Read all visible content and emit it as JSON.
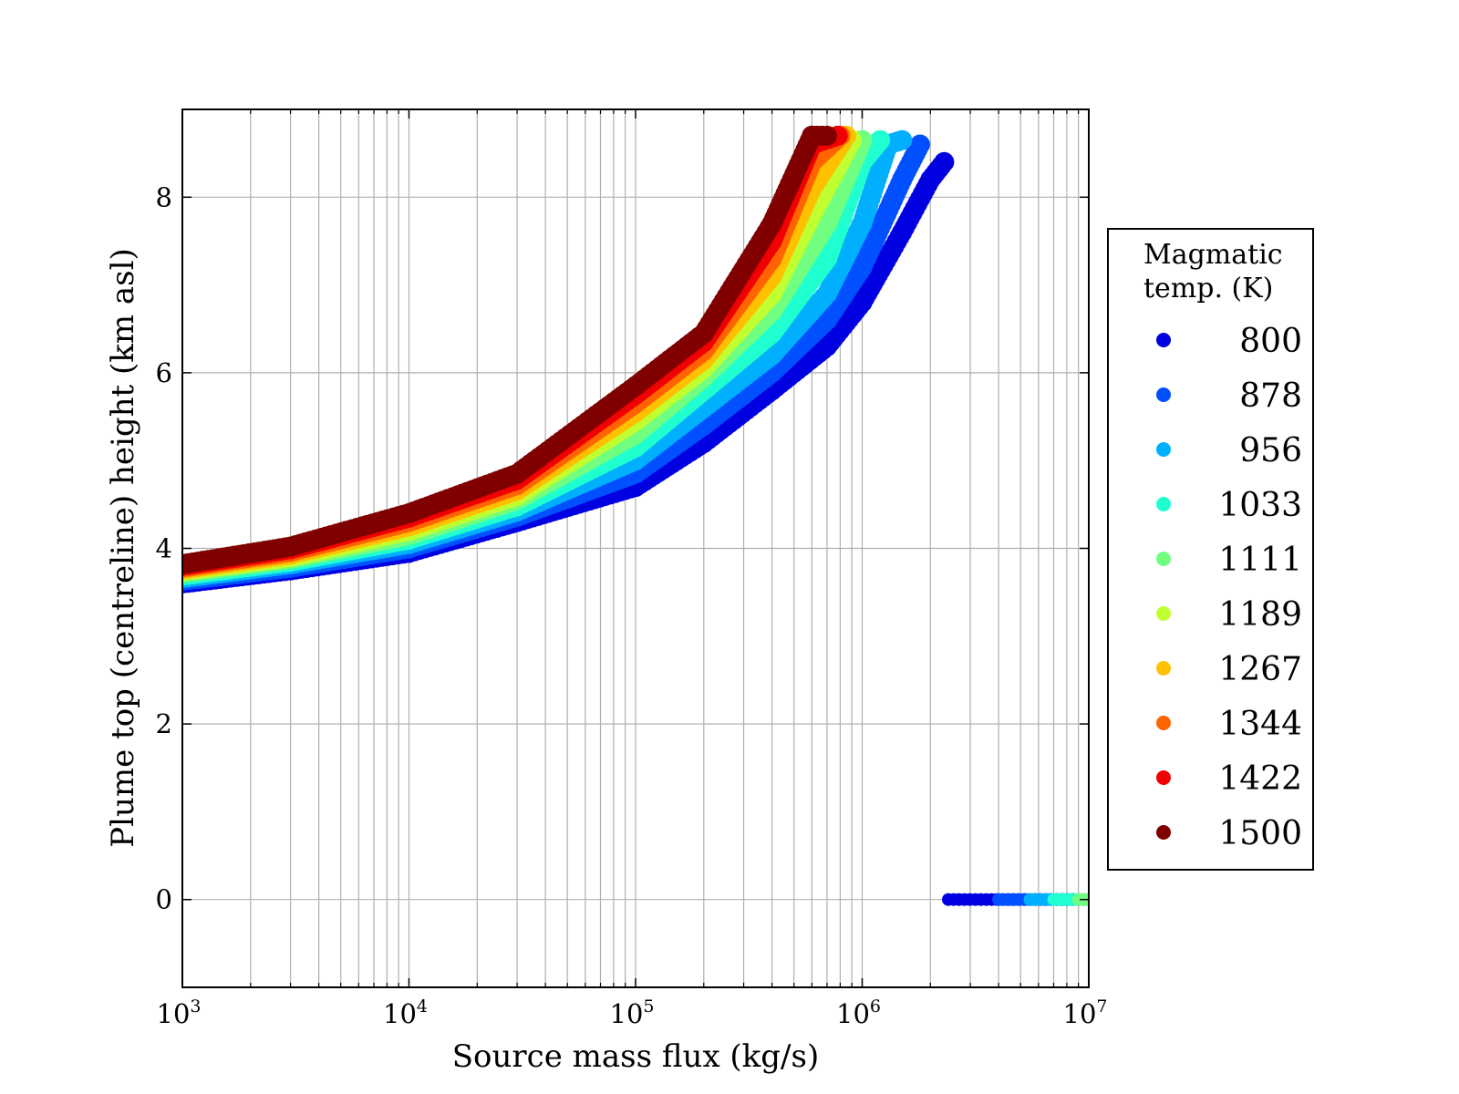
{
  "chart_data": {
    "type": "scatter",
    "xlabel": "Source mass flux (kg/s)",
    "ylabel": "Plume top (centreline) height (km asl)",
    "x_scale": "log",
    "xlim": [
      1000,
      10000000
    ],
    "ylim": [
      -1,
      9
    ],
    "x_ticks": [
      {
        "base": "10",
        "exp": "3"
      },
      {
        "base": "10",
        "exp": "4"
      },
      {
        "base": "10",
        "exp": "5"
      },
      {
        "base": "10",
        "exp": "6"
      },
      {
        "base": "10",
        "exp": "7"
      }
    ],
    "y_ticks": [
      "0",
      "2",
      "4",
      "6",
      "8"
    ],
    "grid": true,
    "legend": {
      "title_lines": [
        "Magmatic",
        "temp. (K)"
      ],
      "placement": "right-outside"
    },
    "series": [
      {
        "name": "800",
        "color": "#0000e0",
        "points": [
          [
            1000,
            3.6
          ],
          [
            3000,
            3.75
          ],
          [
            10000,
            3.95
          ],
          [
            30000,
            4.3
          ],
          [
            100000,
            4.7
          ],
          [
            200000,
            5.2
          ],
          [
            400000,
            5.8
          ],
          [
            700000,
            6.3
          ],
          [
            1000000,
            6.8
          ],
          [
            1500000,
            7.6
          ],
          [
            2000000,
            8.2
          ],
          [
            2300000,
            8.4
          ]
        ],
        "collapsed": [
          [
            2400000,
            0
          ],
          [
            10000000,
            0
          ]
        ]
      },
      {
        "name": "878",
        "color": "#0050ff",
        "points": [
          [
            1000,
            3.63
          ],
          [
            3000,
            3.78
          ],
          [
            10000,
            4.0
          ],
          [
            30000,
            4.36
          ],
          [
            100000,
            4.85
          ],
          [
            200000,
            5.4
          ],
          [
            400000,
            6.0
          ],
          [
            700000,
            6.6
          ],
          [
            1000000,
            7.2
          ],
          [
            1500000,
            8.2
          ],
          [
            1800000,
            8.6
          ]
        ],
        "collapsed": [
          [
            4000000,
            0
          ],
          [
            10000000,
            0
          ]
        ]
      },
      {
        "name": "956",
        "color": "#00b0ff",
        "points": [
          [
            1000,
            3.66
          ],
          [
            3000,
            3.82
          ],
          [
            10000,
            4.05
          ],
          [
            30000,
            4.42
          ],
          [
            100000,
            5.0
          ],
          [
            200000,
            5.6
          ],
          [
            400000,
            6.2
          ],
          [
            700000,
            6.9
          ],
          [
            1000000,
            7.7
          ],
          [
            1300000,
            8.6
          ],
          [
            1500000,
            8.65
          ]
        ],
        "collapsed": [
          [
            5500000,
            0
          ],
          [
            10000000,
            0
          ]
        ]
      },
      {
        "name": "1033",
        "color": "#20ffd0",
        "points": [
          [
            1000,
            3.69
          ],
          [
            3000,
            3.85
          ],
          [
            10000,
            4.1
          ],
          [
            30000,
            4.48
          ],
          [
            100000,
            5.15
          ],
          [
            200000,
            5.8
          ],
          [
            400000,
            6.45
          ],
          [
            700000,
            7.3
          ],
          [
            1000000,
            8.4
          ],
          [
            1200000,
            8.65
          ]
        ],
        "collapsed": [
          [
            7000000,
            0
          ],
          [
            10000000,
            0
          ]
        ]
      },
      {
        "name": "1111",
        "color": "#70ff80",
        "points": [
          [
            1000,
            3.72
          ],
          [
            3000,
            3.88
          ],
          [
            10000,
            4.15
          ],
          [
            30000,
            4.55
          ],
          [
            100000,
            5.3
          ],
          [
            200000,
            5.95
          ],
          [
            400000,
            6.7
          ],
          [
            700000,
            7.7
          ],
          [
            1000000,
            8.65
          ]
        ],
        "collapsed": [
          [
            9000000,
            0
          ],
          [
            10000000,
            0
          ]
        ]
      },
      {
        "name": "1189",
        "color": "#c0ff30",
        "points": [
          [
            1000,
            3.74
          ],
          [
            3000,
            3.9
          ],
          [
            10000,
            4.2
          ],
          [
            30000,
            4.6
          ],
          [
            100000,
            5.45
          ],
          [
            200000,
            6.05
          ],
          [
            400000,
            6.9
          ],
          [
            600000,
            7.8
          ],
          [
            900000,
            8.65
          ]
        ],
        "collapsed": []
      },
      {
        "name": "1267",
        "color": "#ffc000",
        "points": [
          [
            1000,
            3.76
          ],
          [
            3000,
            3.93
          ],
          [
            10000,
            4.25
          ],
          [
            30000,
            4.66
          ],
          [
            100000,
            5.55
          ],
          [
            200000,
            6.15
          ],
          [
            400000,
            7.1
          ],
          [
            600000,
            8.1
          ],
          [
            850000,
            8.7
          ]
        ],
        "collapsed": []
      },
      {
        "name": "1344",
        "color": "#ff6400",
        "points": [
          [
            1000,
            3.78
          ],
          [
            3000,
            3.96
          ],
          [
            10000,
            4.3
          ],
          [
            30000,
            4.72
          ],
          [
            100000,
            5.65
          ],
          [
            200000,
            6.25
          ],
          [
            400000,
            7.3
          ],
          [
            600000,
            8.4
          ],
          [
            800000,
            8.7
          ]
        ],
        "collapsed": []
      },
      {
        "name": "1422",
        "color": "#f00000",
        "points": [
          [
            1000,
            3.8
          ],
          [
            3000,
            3.99
          ],
          [
            10000,
            4.35
          ],
          [
            30000,
            4.78
          ],
          [
            100000,
            5.75
          ],
          [
            200000,
            6.35
          ],
          [
            400000,
            7.5
          ],
          [
            600000,
            8.6
          ],
          [
            780000,
            8.7
          ]
        ],
        "collapsed": []
      },
      {
        "name": "1500",
        "color": "#800000",
        "points": [
          [
            1000,
            3.82
          ],
          [
            3000,
            4.02
          ],
          [
            10000,
            4.4
          ],
          [
            30000,
            4.85
          ],
          [
            100000,
            5.85
          ],
          [
            200000,
            6.45
          ],
          [
            400000,
            7.7
          ],
          [
            600000,
            8.7
          ],
          [
            700000,
            8.7
          ]
        ],
        "collapsed": []
      }
    ]
  }
}
